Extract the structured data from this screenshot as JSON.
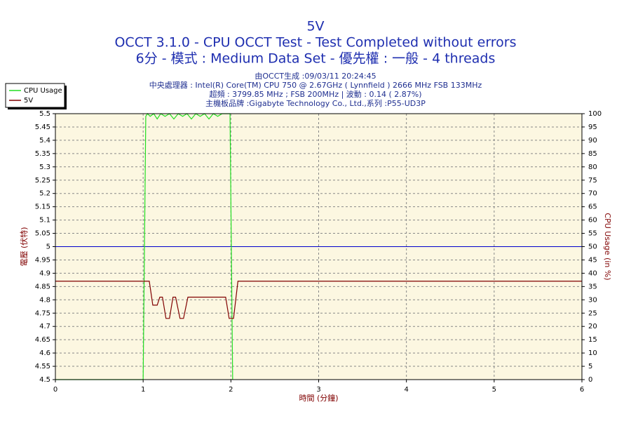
{
  "chart_data": {
    "type": "line",
    "title": "5V",
    "subtitle": "OCCT 3.1.0 - CPU OCCT Test - Test Completed without errors",
    "subtitle2": "6分 - 模式 : Medium Data Set - 優先權 : 一般 - 4 threads",
    "info": [
      "由OCCT生成 :09/03/11 20:24:45",
      "中央處理器 : Intel(R) Core(TM) CPU 750 @ 2.67GHz ( Lynnfield ) 2666 MHz FSB 133MHz",
      "超頻 : 3799.85 MHz ; FSB 200MHz | 波動 : 0.14 ( 2.87%)",
      "主機板品牌 :Gigabyte Technology Co., Ltd.,系列 :P55-UD3P"
    ],
    "xlabel": "時間 (分鐘)",
    "ylabel": "電壓 (伏特)",
    "y2label": "CPU Usage (in %)",
    "xlim": [
      0,
      6
    ],
    "xticks": [
      0,
      1,
      2,
      3,
      4,
      5,
      6
    ],
    "ylim": [
      4.5,
      5.5
    ],
    "yticks": [
      4.5,
      4.55,
      4.6,
      4.65,
      4.7,
      4.75,
      4.8,
      4.85,
      4.9,
      4.95,
      5,
      5.05,
      5.1,
      5.15,
      5.2,
      5.25,
      5.3,
      5.35,
      5.4,
      5.45,
      5.5
    ],
    "y2lim": [
      0,
      100
    ],
    "y2ticks": [
      0,
      5,
      10,
      15,
      20,
      25,
      30,
      35,
      40,
      45,
      50,
      55,
      60,
      65,
      70,
      75,
      80,
      85,
      90,
      95,
      100
    ],
    "grid": true,
    "legend": "upper left",
    "reference_line": {
      "value": 5,
      "color": "#0000cc"
    },
    "series": [
      {
        "name": "CPU Usage",
        "color": "#22dd22",
        "axis": "y2",
        "x": [
          0,
          1.0,
          1.03,
          1.05,
          1.08,
          1.12,
          1.16,
          1.2,
          1.25,
          1.3,
          1.35,
          1.4,
          1.45,
          1.5,
          1.55,
          1.6,
          1.65,
          1.7,
          1.75,
          1.8,
          1.85,
          1.9,
          1.95,
          1.99,
          2.02
        ],
        "values": [
          0,
          0,
          99,
          100,
          99,
          100,
          98,
          100,
          99,
          100,
          98,
          100,
          99,
          100,
          98,
          100,
          99,
          100,
          98,
          100,
          99,
          100,
          100,
          100,
          0
        ]
      },
      {
        "name": "5V",
        "color": "#800000",
        "x": [
          0,
          1.07,
          1.11,
          1.16,
          1.19,
          1.22,
          1.26,
          1.3,
          1.34,
          1.37,
          1.42,
          1.46,
          1.51,
          1.55,
          1.94,
          1.98,
          2.03,
          2.08,
          6
        ],
        "values": [
          4.87,
          4.87,
          4.78,
          4.78,
          4.81,
          4.81,
          4.73,
          4.73,
          4.81,
          4.81,
          4.73,
          4.73,
          4.81,
          4.81,
          4.81,
          4.73,
          4.73,
          4.87,
          4.87
        ]
      }
    ]
  }
}
